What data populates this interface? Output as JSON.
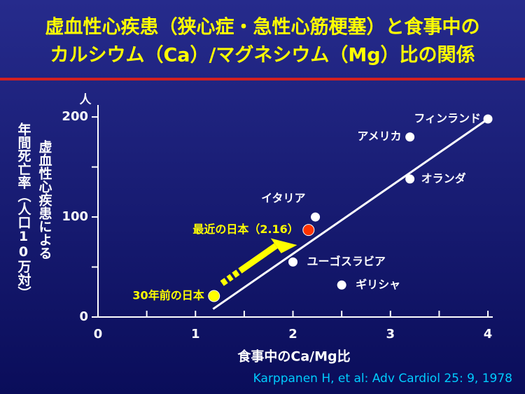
{
  "chart_data": {
    "type": "scatter",
    "title": [
      "虚血性心疾患（狭心症・急性心筋梗塞）と食事中の",
      "カルシウム（Ca）/マグネシウム（Mg）比の関係"
    ],
    "y_unit": "人",
    "y_label": [
      "年間死亡率（人口10万対）",
      "虚血性心疾患による"
    ],
    "x_label": "食事中のCa/Mg比",
    "source": "Karppanen H, et al: Adv Cardiol 25: 9, 1978",
    "xlim": [
      0,
      4.05
    ],
    "xticks": [
      0,
      1,
      2,
      3,
      4
    ],
    "xminor": [
      0.5,
      1.5,
      2.5,
      3.5
    ],
    "ylim": [
      0,
      212
    ],
    "yticks": [
      0,
      100,
      200
    ],
    "yminor": [
      50,
      150
    ],
    "points": [
      {
        "label": "フィンランド",
        "x": 4.0,
        "y": 198,
        "color": "#ffffff"
      },
      {
        "label": "アメリカ",
        "x": 3.2,
        "y": 180,
        "color": "#ffffff"
      },
      {
        "label": "オランダ",
        "x": 3.2,
        "y": 138,
        "color": "#ffffff"
      },
      {
        "label": "イタリア",
        "x": 2.23,
        "y": 100,
        "color": "#ffffff"
      },
      {
        "label": "ユーゴスラビア",
        "x": 2.0,
        "y": 55,
        "color": "#ffffff"
      },
      {
        "label": "ギリシャ",
        "x": 2.5,
        "y": 32,
        "color": "#ffffff"
      },
      {
        "label": "最近の日本（2.16）",
        "x": 2.16,
        "y": 87,
        "color": "#ff3300"
      },
      {
        "label": "30年前の日本",
        "x": 1.19,
        "y": 21,
        "color": "#ffff00"
      }
    ],
    "trendline": {
      "x": [
        1.18,
        4.0
      ],
      "y": [
        8,
        198
      ],
      "color": "#ffffff"
    },
    "arrow_color": "#ffff00"
  }
}
